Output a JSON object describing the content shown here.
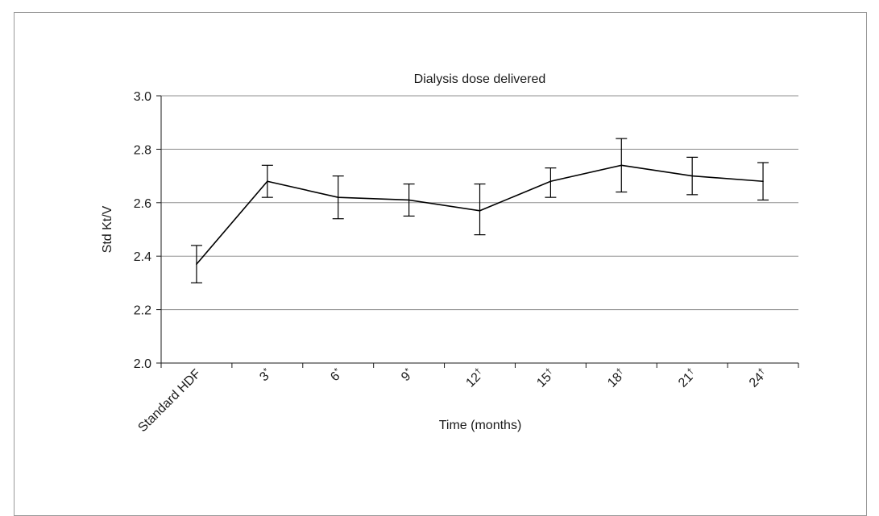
{
  "chart_data": {
    "type": "line",
    "title": "Dialysis dose delivered",
    "xlabel": "Time (months)",
    "ylabel": "Std Kt/V",
    "ylim": [
      2.0,
      3.0
    ],
    "yticks": [
      "2.0",
      "2.2",
      "2.4",
      "2.6",
      "2.8",
      "3.0"
    ],
    "grid": true,
    "categories": [
      {
        "label": "Standard HDF",
        "sup": ""
      },
      {
        "label": "3",
        "sup": "*"
      },
      {
        "label": "6",
        "sup": "*"
      },
      {
        "label": "9",
        "sup": "*"
      },
      {
        "label": "12",
        "sup": "†"
      },
      {
        "label": "15",
        "sup": "†"
      },
      {
        "label": "18",
        "sup": "†"
      },
      {
        "label": "21",
        "sup": "†"
      },
      {
        "label": "24",
        "sup": "†"
      }
    ],
    "series": [
      {
        "values": [
          2.37,
          2.68,
          2.62,
          2.61,
          2.57,
          2.68,
          2.74,
          2.7,
          2.68
        ],
        "error_low": [
          2.3,
          2.62,
          2.54,
          2.55,
          2.48,
          2.62,
          2.64,
          2.63,
          2.61
        ],
        "error_high": [
          2.44,
          2.74,
          2.7,
          2.67,
          2.67,
          2.73,
          2.84,
          2.77,
          2.75
        ]
      }
    ]
  }
}
